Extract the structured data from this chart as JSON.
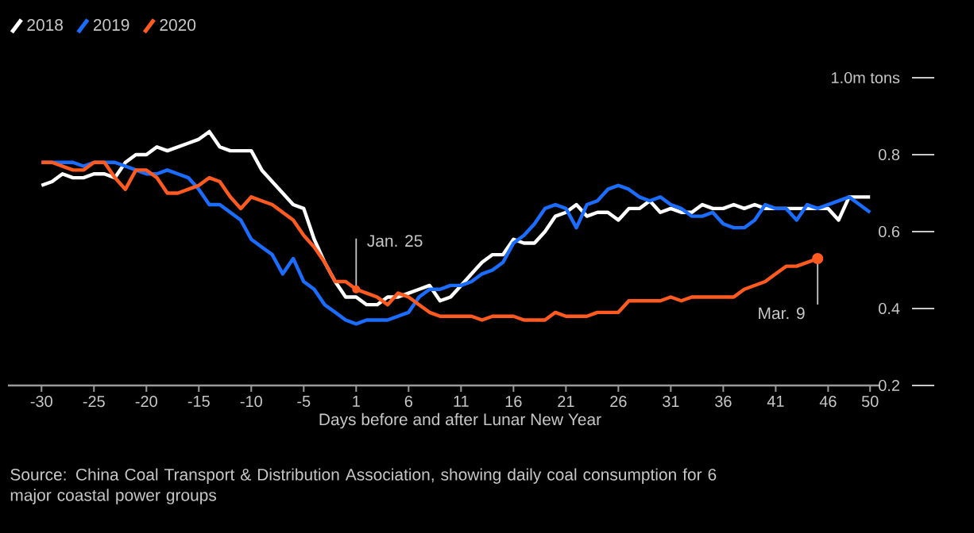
{
  "chart_data": {
    "type": "line",
    "categories": [
      "-30",
      null,
      null,
      null,
      null,
      "-25",
      null,
      null,
      null,
      null,
      "-20",
      null,
      null,
      null,
      null,
      "-15",
      null,
      null,
      null,
      null,
      "-10",
      null,
      null,
      null,
      null,
      "-5",
      null,
      null,
      null,
      null,
      "1",
      null,
      null,
      null,
      null,
      "6",
      null,
      null,
      null,
      null,
      "11",
      null,
      null,
      null,
      null,
      "16",
      null,
      null,
      null,
      null,
      "21",
      null,
      null,
      null,
      null,
      "26",
      null,
      null,
      null,
      null,
      "31",
      null,
      null,
      null,
      null,
      "36",
      null,
      null,
      null,
      null,
      "41",
      null,
      null,
      null,
      null,
      "46",
      null,
      null,
      null,
      "50"
    ],
    "series": [
      {
        "name": "2018",
        "color": "#ffffff",
        "values": [
          0.72,
          0.73,
          0.75,
          0.74,
          0.74,
          0.75,
          0.75,
          0.74,
          0.78,
          0.8,
          0.8,
          0.82,
          0.81,
          0.82,
          0.83,
          0.84,
          0.86,
          0.82,
          0.81,
          0.81,
          0.81,
          0.76,
          0.73,
          0.7,
          0.67,
          0.66,
          0.58,
          0.52,
          0.47,
          0.43,
          0.43,
          0.41,
          0.41,
          0.43,
          0.43,
          0.44,
          0.45,
          0.46,
          0.42,
          0.43,
          0.46,
          0.49,
          0.52,
          0.54,
          0.54,
          0.58,
          0.57,
          0.57,
          0.6,
          0.64,
          0.65,
          0.67,
          0.64,
          0.65,
          0.65,
          0.63,
          0.66,
          0.66,
          0.68,
          0.65,
          0.66,
          0.65,
          0.65,
          0.67,
          0.66,
          0.66,
          0.67,
          0.66,
          0.67,
          0.66,
          0.66,
          0.66,
          0.66,
          0.66,
          0.66,
          0.66,
          0.63,
          0.69,
          0.69,
          0.69
        ]
      },
      {
        "name": "2019",
        "color": "#1a6dff",
        "values": [
          0.78,
          0.78,
          0.78,
          0.78,
          0.77,
          0.78,
          0.78,
          0.78,
          0.77,
          0.76,
          0.75,
          0.75,
          0.76,
          0.75,
          0.74,
          0.71,
          0.67,
          0.67,
          0.65,
          0.63,
          0.58,
          0.56,
          0.54,
          0.49,
          0.53,
          0.47,
          0.45,
          0.41,
          0.39,
          0.37,
          0.36,
          0.37,
          0.37,
          0.37,
          0.38,
          0.39,
          0.43,
          0.45,
          0.45,
          0.46,
          0.46,
          0.47,
          0.49,
          0.5,
          0.52,
          0.57,
          0.59,
          0.62,
          0.66,
          0.67,
          0.66,
          0.61,
          0.67,
          0.68,
          0.71,
          0.72,
          0.71,
          0.69,
          0.68,
          0.69,
          0.67,
          0.66,
          0.64,
          0.64,
          0.65,
          0.62,
          0.61,
          0.61,
          0.63,
          0.67,
          0.66,
          0.66,
          0.63,
          0.67,
          0.66,
          0.67,
          0.68,
          0.69,
          0.67,
          0.65
        ]
      },
      {
        "name": "2020",
        "color": "#ff5a1f",
        "values": [
          0.78,
          0.78,
          0.77,
          0.76,
          0.76,
          0.78,
          0.78,
          0.74,
          0.71,
          0.76,
          0.76,
          0.74,
          0.7,
          0.7,
          0.71,
          0.72,
          0.74,
          0.73,
          0.69,
          0.66,
          0.69,
          0.68,
          0.67,
          0.65,
          0.63,
          0.59,
          0.56,
          0.52,
          0.47,
          0.47,
          0.45,
          0.44,
          0.43,
          0.41,
          0.44,
          0.43,
          0.41,
          0.39,
          0.38,
          0.38,
          0.38,
          0.38,
          0.37,
          0.38,
          0.38,
          0.38,
          0.37,
          0.37,
          0.37,
          0.39,
          0.38,
          0.38,
          0.38,
          0.39,
          0.39,
          0.39,
          0.42,
          0.42,
          0.42,
          0.42,
          0.43,
          0.42,
          0.43,
          0.43,
          0.43,
          0.43,
          0.43,
          0.45,
          0.46,
          0.47,
          0.49,
          0.51,
          0.51,
          0.52,
          0.53,
          null,
          null,
          null,
          null,
          null
        ]
      }
    ],
    "xlabel": "Days before and after Lunar New Year",
    "ylim": [
      0.2,
      1.0
    ],
    "yticks": [
      0.2,
      0.4,
      0.6,
      0.8,
      {
        "value": 1.0,
        "label": "1.0m tons"
      }
    ],
    "legend": "top left",
    "annotations": [
      {
        "text": "Jan. 25",
        "x": "1",
        "y": 0.45
      },
      {
        "text": "Mar. 9",
        "y": 0.53
      },
      "Source: China Coal Transport & Distribution Association, showing daily coal consumption for 6 major coastal power groups"
    ]
  }
}
